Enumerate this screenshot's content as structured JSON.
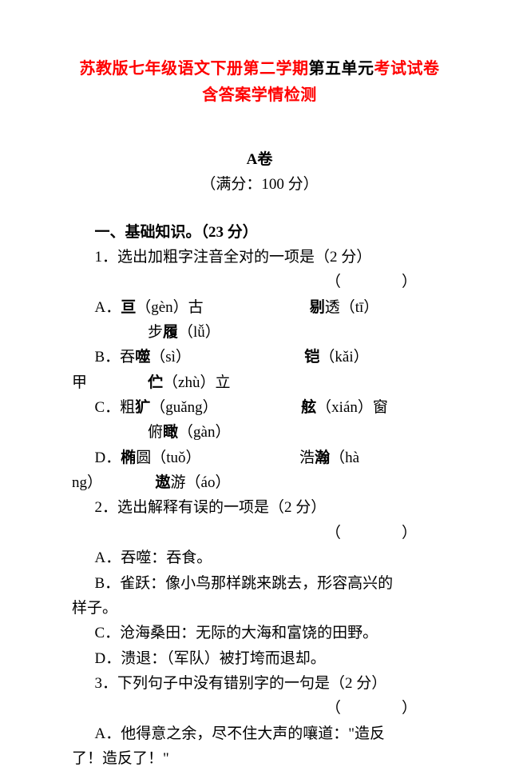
{
  "title": {
    "line1_red_a": "苏教版七年级语文下册第二学期",
    "line1_black": "第五单元",
    "line1_red_b": "考试试卷",
    "line2": "含答案学情检测"
  },
  "header": {
    "paper_label": "A卷",
    "full_score": "（满分：100 分）"
  },
  "section1": {
    "heading": "一、基础知识。（23 分）",
    "q1": {
      "stem": "1．选出加粗字注音全对的一项是（2 分）",
      "blank": "（　　　　）",
      "optA_1a": "A．",
      "optA_1b": "亘",
      "optA_1c": "（gèn）古",
      "optA_1d": "剔",
      "optA_1e": "透（tī）",
      "optA_2a": "步",
      "optA_2b": "履",
      "optA_2c": "（lǚ）",
      "optB_1a": "B．吞",
      "optB_1b": "噬",
      "optB_1c": "（sì）",
      "optB_1d": "铠",
      "optB_1e": "（kǎi）",
      "optB_2a": "甲",
      "optB_2b": "伫",
      "optB_2c": "（zhù）立",
      "optC_1a": "C．粗",
      "optC_1b": "犷",
      "optC_1c": "（guǎng）",
      "optC_1d": "舷",
      "optC_1e": "（xián）窗",
      "optC_2a": "俯",
      "optC_2b": "瞰",
      "optC_2c": "（gàn）",
      "optD_1a": "D．",
      "optD_1b": "椭",
      "optD_1c": "圆（tuǒ）",
      "optD_1d": "浩",
      "optD_1e": "瀚",
      "optD_1f": "（hà",
      "optD_2a": "ng）",
      "optD_2b": "遨",
      "optD_2c": "游（áo）"
    },
    "q2": {
      "stem": "2．选出解释有误的一项是（2 分）",
      "blank": "（　　　　）",
      "optA": "A．吞噬：吞食。",
      "optB": "B．雀跃：像小鸟那样跳来跳去，形容高兴的",
      "optB_2": "样子。",
      "optC": "C．沧海桑田：无际的大海和富饶的田野。",
      "optD": "D．溃退：（军队）被打垮而退却。"
    },
    "q3": {
      "stem": "3．下列句子中没有错别字的一句是（2 分）",
      "blank": "（　　　　）",
      "optA": "A．他得意之余，尽不住大声的嚷道：\"造反",
      "optA_2": "了！造反了！\""
    }
  }
}
